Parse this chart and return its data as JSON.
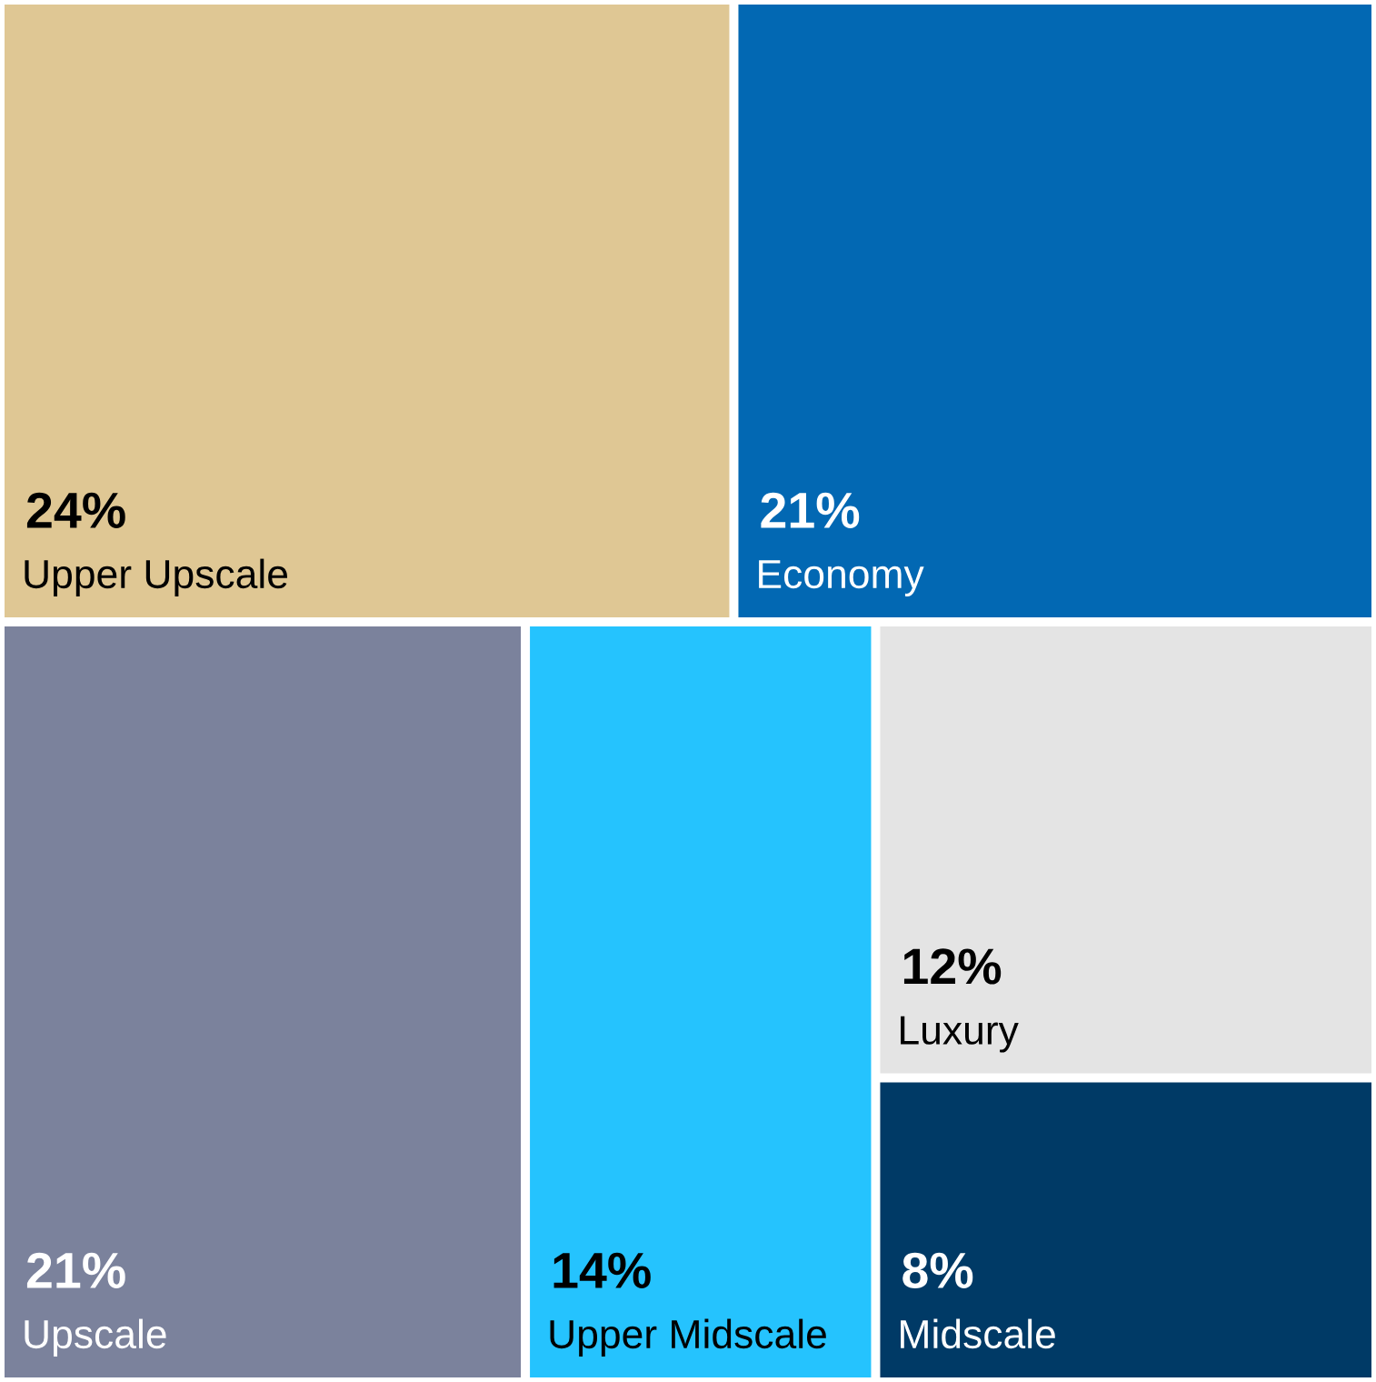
{
  "chart_data": {
    "type": "other",
    "categories": [
      "Upper Upscale",
      "Economy",
      "Upscale",
      "Upper Midscale",
      "Luxury",
      "Midscale"
    ],
    "values": [
      24,
      21,
      21,
      14,
      12,
      8
    ],
    "value_labels": [
      "24%",
      "21%",
      "21%",
      "14%",
      "12%",
      "8%"
    ],
    "colors": [
      "#dfc794",
      "#0268b3",
      "#7b829c",
      "#25c3fe",
      "#e4e4e4",
      "#003a66"
    ]
  }
}
